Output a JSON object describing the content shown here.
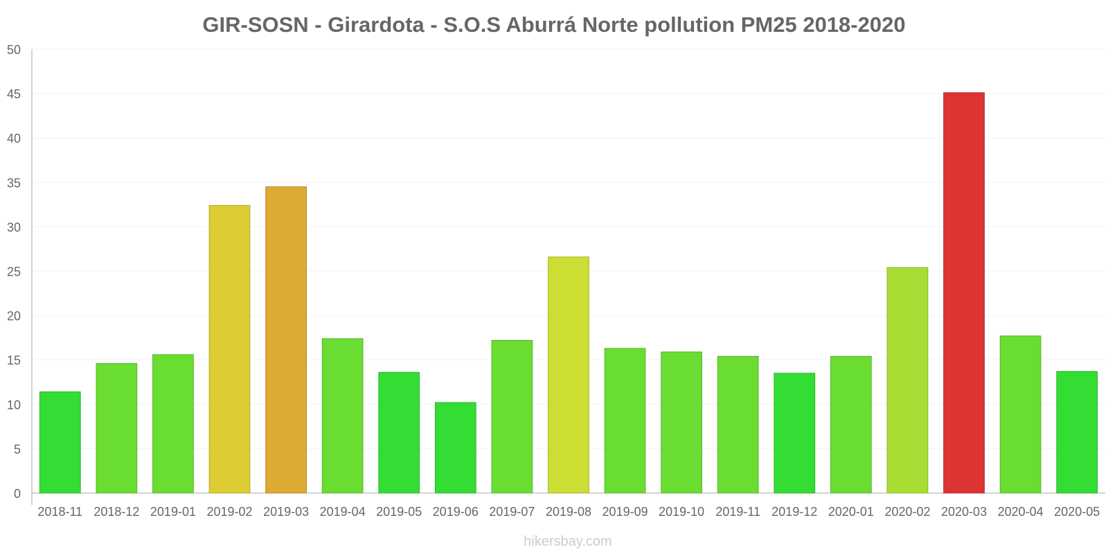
{
  "chart_data": {
    "type": "bar",
    "title": "GIR-SOSN - Girardota - S.O.S Aburrá Norte pollution PM25 2018-2020",
    "xlabel": "",
    "ylabel": "",
    "ylim": [
      0,
      50
    ],
    "yticks": [
      0,
      5,
      10,
      15,
      20,
      25,
      30,
      35,
      40,
      45,
      50
    ],
    "grid": true,
    "categories": [
      "2018-11",
      "2018-12",
      "2019-01",
      "2019-02",
      "2019-03",
      "2019-04",
      "2019-05",
      "2019-06",
      "2019-07",
      "2019-08",
      "2019-09",
      "2019-10",
      "2019-11",
      "2019-12",
      "2020-01",
      "2020-02",
      "2020-03",
      "2020-04",
      "2020-05"
    ],
    "values": [
      11.4,
      14.6,
      15.6,
      32.4,
      34.5,
      17.4,
      13.6,
      10.2,
      17.2,
      26.6,
      16.3,
      15.9,
      15.4,
      13.5,
      15.4,
      25.4,
      45.1,
      17.7,
      13.7
    ],
    "bar_colors": [
      "#33dd33",
      "#6add33",
      "#6add33",
      "#ddcc33",
      "#ddaa33",
      "#6add33",
      "#33dd33",
      "#33dd33",
      "#6add33",
      "#ccdd33",
      "#6add33",
      "#6add33",
      "#6add33",
      "#33dd33",
      "#6add33",
      "#aadd33",
      "#dd3333",
      "#6add33",
      "#33dd33"
    ],
    "watermark": "hikersbay.com"
  }
}
